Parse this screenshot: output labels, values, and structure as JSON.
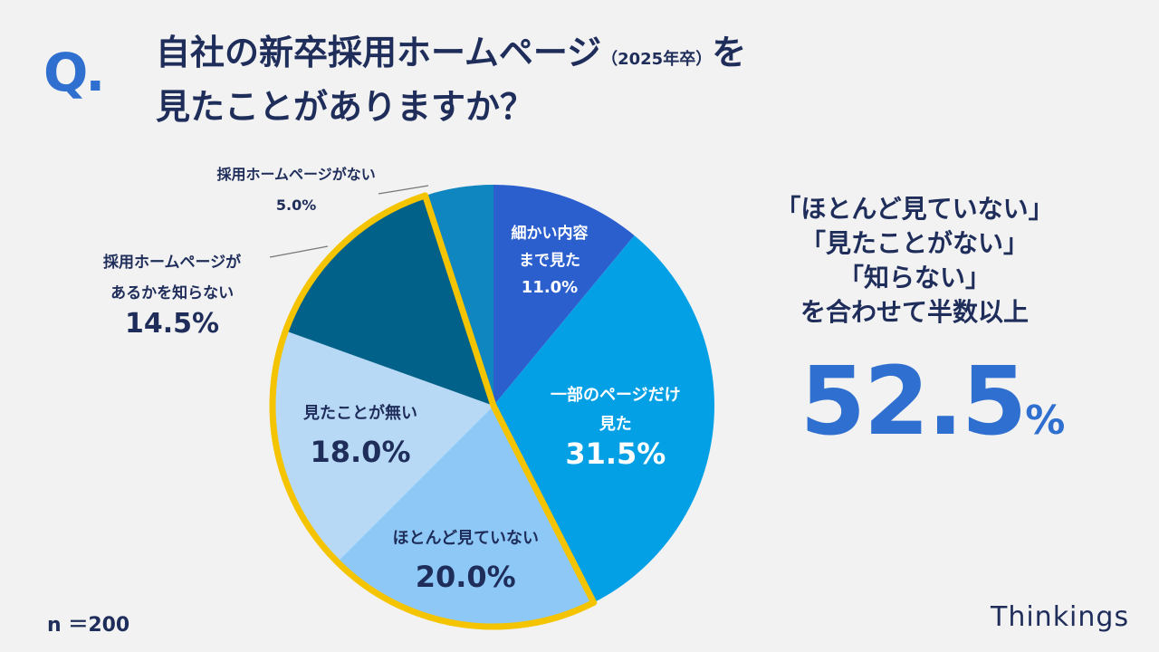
{
  "question_mark": "Q.",
  "title": {
    "line1_main": "自社の新卒採用ホームページ",
    "line1_small": "（2025年卒）",
    "line1_end": "を",
    "line2": "見たことがありますか？"
  },
  "chart_data": {
    "type": "pie",
    "start_angle_deg": 0,
    "direction": "clockwise",
    "slices": [
      {
        "label_lines": [
          "細かい内容",
          "まで見た"
        ],
        "value": 11.0,
        "display": "11.0%",
        "color": "#2b5fce",
        "label_color": "#ffffff"
      },
      {
        "label_lines": [
          "一部のページだけ",
          "見た"
        ],
        "value": 31.5,
        "display": "31.5%",
        "color": "#04a0e6",
        "label_color": "#ffffff"
      },
      {
        "label_lines": [
          "ほとんど見ていない"
        ],
        "value": 20.0,
        "display": "20.0%",
        "color": "#8ec8f6",
        "label_color": "#1f2d5a"
      },
      {
        "label_lines": [
          "見たことが無い"
        ],
        "value": 18.0,
        "display": "18.0%",
        "color": "#b8d9f6",
        "label_color": "#1f2d5a"
      },
      {
        "label_lines": [
          "採用ホームページが",
          "あるかを知らない"
        ],
        "value": 14.5,
        "display": "14.5%",
        "color": "#026189",
        "label_color": "#1f2d5a"
      },
      {
        "label_lines": [
          "採用ホームページがない"
        ],
        "value": 5.0,
        "display": "5.0%",
        "color": "#0f86bf",
        "label_color": "#1f2d5a"
      }
    ],
    "highlight": {
      "slices": [
        2,
        3,
        4
      ],
      "color": "#f5c400"
    }
  },
  "summary": {
    "lines": [
      "「ほとんど見ていない」",
      "「見たことがない」",
      "「知らない」",
      "を合わせて半数以上"
    ],
    "value": "52.5",
    "unit": "%"
  },
  "sample_size": "n ＝200",
  "logo": "Thinkings"
}
